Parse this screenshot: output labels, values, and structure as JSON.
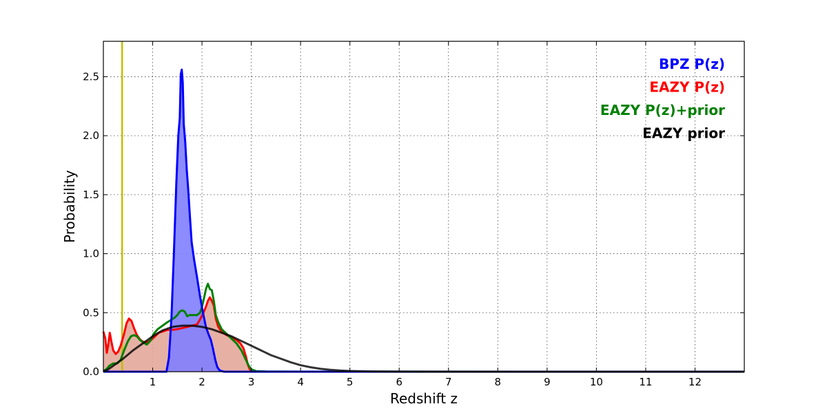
{
  "chart_data": {
    "type": "line",
    "title": "",
    "xlabel": "Redshift z",
    "ylabel": "Probability",
    "xlim": [
      0,
      13
    ],
    "ylim": [
      0,
      2.8
    ],
    "grid": true,
    "legend_position": "top-right",
    "xticks": [
      1,
      2,
      3,
      4,
      5,
      6,
      7,
      8,
      9,
      10,
      11,
      12
    ],
    "yticks": [
      0.0,
      0.5,
      1.0,
      1.5,
      2.0,
      2.5
    ],
    "ytick_labels": [
      "0.0",
      "0.5",
      "1.0",
      "1.5",
      "2.0",
      "2.5"
    ],
    "vertical_line": {
      "x": 0.38,
      "color": "#bfbf00"
    },
    "series": [
      {
        "name": "BPZ P(z)",
        "color": "#0000ff",
        "fill": "#7f7fff",
        "filled": true,
        "points": [
          [
            0,
            0
          ],
          [
            1.28,
            0
          ],
          [
            1.33,
            0.12
          ],
          [
            1.38,
            0.45
          ],
          [
            1.43,
            1.0
          ],
          [
            1.48,
            1.6
          ],
          [
            1.52,
            2.0
          ],
          [
            1.55,
            2.15
          ],
          [
            1.57,
            2.52
          ],
          [
            1.59,
            2.56
          ],
          [
            1.61,
            2.45
          ],
          [
            1.63,
            2.1
          ],
          [
            1.66,
            1.95
          ],
          [
            1.69,
            1.72
          ],
          [
            1.72,
            1.55
          ],
          [
            1.75,
            1.35
          ],
          [
            1.79,
            1.1
          ],
          [
            1.84,
            0.95
          ],
          [
            1.9,
            0.8
          ],
          [
            1.96,
            0.64
          ],
          [
            2.02,
            0.5
          ],
          [
            2.08,
            0.38
          ],
          [
            2.13,
            0.32
          ],
          [
            2.18,
            0.27
          ],
          [
            2.22,
            0.2
          ],
          [
            2.27,
            0.1
          ],
          [
            2.31,
            0.04
          ],
          [
            2.36,
            0.01
          ],
          [
            2.45,
            0
          ],
          [
            13,
            0
          ]
        ]
      },
      {
        "name": "EAZY P(z)",
        "color": "#ff0000",
        "fill": "#e3a99a",
        "filled": true,
        "points": [
          [
            0,
            0.34
          ],
          [
            0.04,
            0.28
          ],
          [
            0.07,
            0.16
          ],
          [
            0.1,
            0.23
          ],
          [
            0.13,
            0.33
          ],
          [
            0.16,
            0.26
          ],
          [
            0.2,
            0.18
          ],
          [
            0.25,
            0.15
          ],
          [
            0.3,
            0.17
          ],
          [
            0.35,
            0.22
          ],
          [
            0.42,
            0.32
          ],
          [
            0.47,
            0.41
          ],
          [
            0.52,
            0.45
          ],
          [
            0.57,
            0.43
          ],
          [
            0.62,
            0.37
          ],
          [
            0.68,
            0.31
          ],
          [
            0.75,
            0.27
          ],
          [
            0.82,
            0.25
          ],
          [
            0.9,
            0.25
          ],
          [
            0.97,
            0.27
          ],
          [
            1.05,
            0.3
          ],
          [
            1.12,
            0.33
          ],
          [
            1.2,
            0.34
          ],
          [
            1.3,
            0.355
          ],
          [
            1.4,
            0.355
          ],
          [
            1.5,
            0.36
          ],
          [
            1.6,
            0.37
          ],
          [
            1.7,
            0.38
          ],
          [
            1.8,
            0.39
          ],
          [
            1.9,
            0.4
          ],
          [
            1.97,
            0.45
          ],
          [
            2.03,
            0.5
          ],
          [
            2.08,
            0.55
          ],
          [
            2.12,
            0.6
          ],
          [
            2.16,
            0.63
          ],
          [
            2.2,
            0.6
          ],
          [
            2.24,
            0.56
          ],
          [
            2.28,
            0.45
          ],
          [
            2.33,
            0.38
          ],
          [
            2.4,
            0.34
          ],
          [
            2.5,
            0.31
          ],
          [
            2.6,
            0.29
          ],
          [
            2.7,
            0.27
          ],
          [
            2.78,
            0.24
          ],
          [
            2.84,
            0.2
          ],
          [
            2.89,
            0.13
          ],
          [
            2.93,
            0.06
          ],
          [
            2.97,
            0.02
          ],
          [
            3.05,
            0
          ],
          [
            13,
            0
          ]
        ]
      },
      {
        "name": "EAZY P(z)+prior",
        "color": "#008000",
        "fill": "none",
        "filled": false,
        "points": [
          [
            0,
            0.005
          ],
          [
            0.06,
            0.02
          ],
          [
            0.12,
            0.05
          ],
          [
            0.2,
            0.07
          ],
          [
            0.28,
            0.07
          ],
          [
            0.35,
            0.1
          ],
          [
            0.42,
            0.18
          ],
          [
            0.5,
            0.26
          ],
          [
            0.56,
            0.3
          ],
          [
            0.62,
            0.31
          ],
          [
            0.68,
            0.3
          ],
          [
            0.74,
            0.27
          ],
          [
            0.8,
            0.25
          ],
          [
            0.88,
            0.23
          ],
          [
            0.95,
            0.26
          ],
          [
            1.02,
            0.32
          ],
          [
            1.1,
            0.36
          ],
          [
            1.2,
            0.39
          ],
          [
            1.3,
            0.42
          ],
          [
            1.38,
            0.44
          ],
          [
            1.45,
            0.46
          ],
          [
            1.5,
            0.48
          ],
          [
            1.55,
            0.51
          ],
          [
            1.6,
            0.52
          ],
          [
            1.65,
            0.51
          ],
          [
            1.7,
            0.47
          ],
          [
            1.75,
            0.48
          ],
          [
            1.82,
            0.48
          ],
          [
            1.9,
            0.48
          ],
          [
            1.96,
            0.5
          ],
          [
            2.0,
            0.55
          ],
          [
            2.04,
            0.62
          ],
          [
            2.08,
            0.7
          ],
          [
            2.12,
            0.745
          ],
          [
            2.16,
            0.7
          ],
          [
            2.2,
            0.69
          ],
          [
            2.24,
            0.6
          ],
          [
            2.28,
            0.48
          ],
          [
            2.33,
            0.42
          ],
          [
            2.4,
            0.36
          ],
          [
            2.5,
            0.32
          ],
          [
            2.6,
            0.28
          ],
          [
            2.7,
            0.24
          ],
          [
            2.8,
            0.18
          ],
          [
            2.88,
            0.11
          ],
          [
            2.95,
            0.05
          ],
          [
            3.0,
            0.02
          ],
          [
            3.1,
            0.005
          ],
          [
            3.3,
            0.002
          ],
          [
            4,
            0.001
          ],
          [
            5,
            0.0005
          ],
          [
            13,
            0
          ]
        ]
      },
      {
        "name": "EAZY prior",
        "color": "#000000",
        "fill": "none",
        "filled": false,
        "points": [
          [
            0,
            0.002
          ],
          [
            0.1,
            0.02
          ],
          [
            0.2,
            0.05
          ],
          [
            0.4,
            0.11
          ],
          [
            0.6,
            0.18
          ],
          [
            0.8,
            0.24
          ],
          [
            1.0,
            0.3
          ],
          [
            1.2,
            0.35
          ],
          [
            1.4,
            0.38
          ],
          [
            1.6,
            0.39
          ],
          [
            1.8,
            0.39
          ],
          [
            2.0,
            0.38
          ],
          [
            2.2,
            0.36
          ],
          [
            2.4,
            0.33
          ],
          [
            2.6,
            0.3
          ],
          [
            2.8,
            0.26
          ],
          [
            3.0,
            0.22
          ],
          [
            3.2,
            0.18
          ],
          [
            3.4,
            0.14
          ],
          [
            3.6,
            0.11
          ],
          [
            3.8,
            0.08
          ],
          [
            4.0,
            0.055
          ],
          [
            4.2,
            0.038
          ],
          [
            4.4,
            0.025
          ],
          [
            4.6,
            0.016
          ],
          [
            4.8,
            0.01
          ],
          [
            5.0,
            0.006
          ],
          [
            5.4,
            0.002
          ],
          [
            6.0,
            0.0005
          ],
          [
            7.0,
            0
          ],
          [
            13,
            0
          ]
        ]
      }
    ]
  }
}
